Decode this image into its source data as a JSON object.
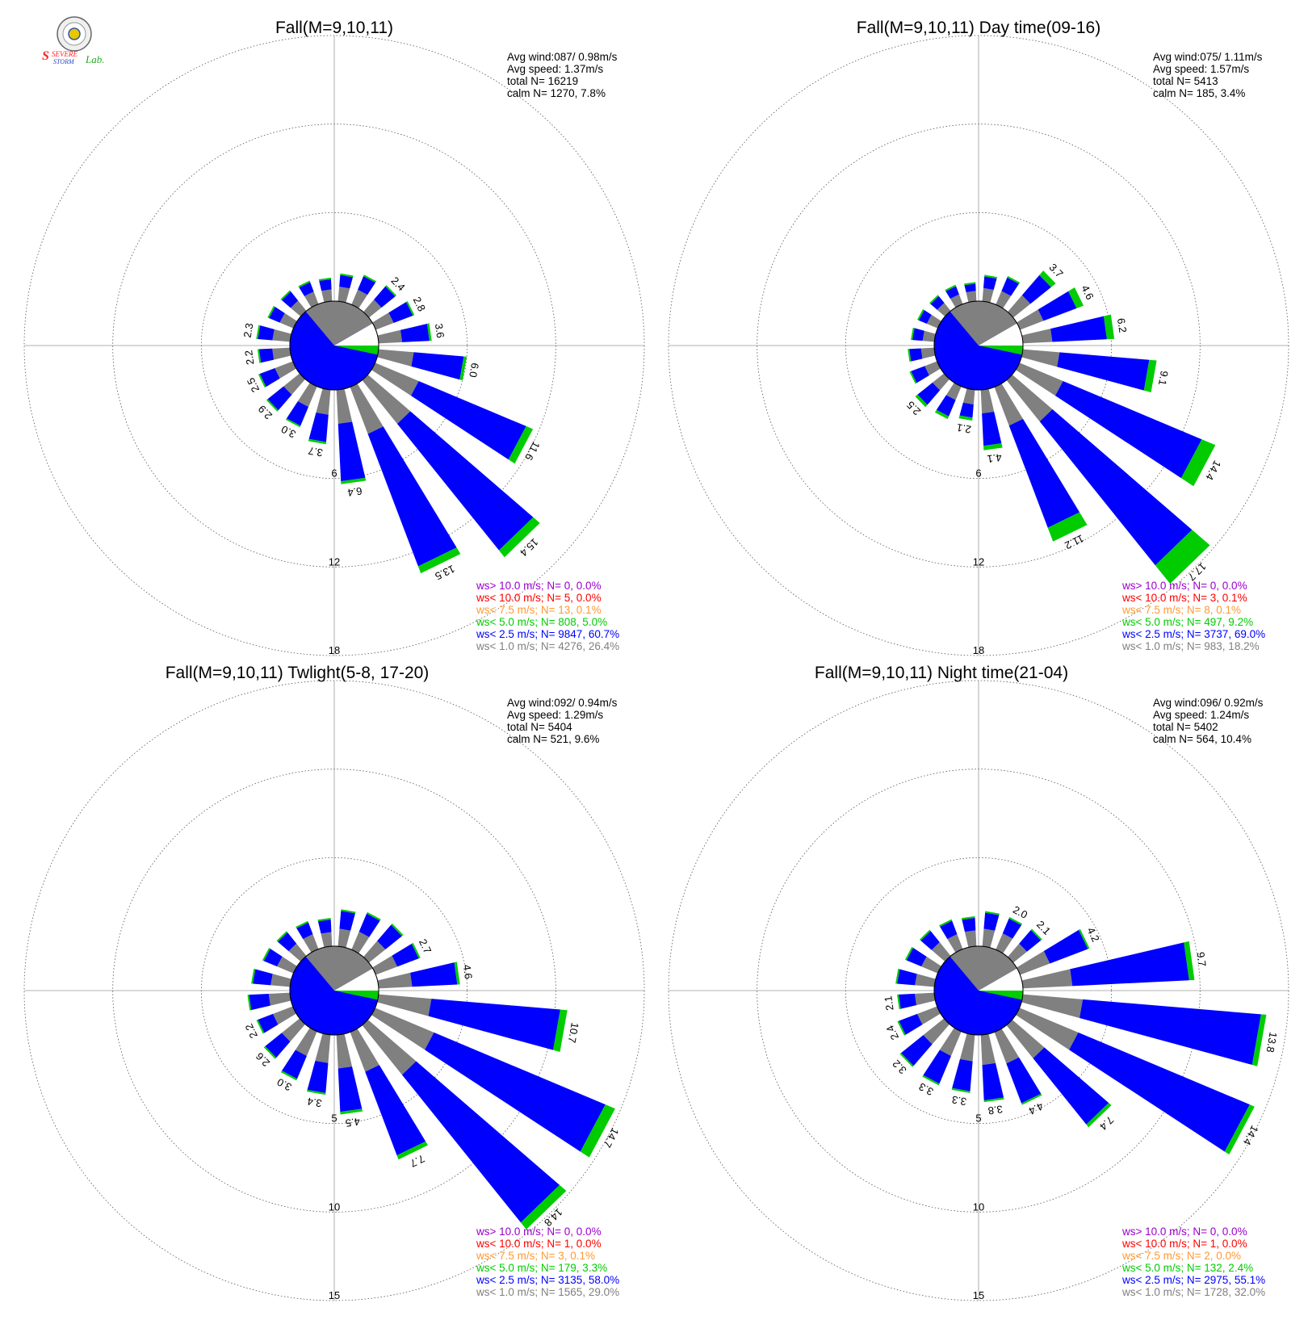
{
  "logo": {
    "line1": "SEVERE",
    "line2": "STORM",
    "line3": "Lab."
  },
  "colors": {
    "gt10": "#9900cc",
    "lt10": "#ff0000",
    "lt75": "#ff9933",
    "lt5": "#00cc00",
    "lt25": "#0000ff",
    "lt1": "#808080"
  },
  "charts": [
    {
      "title": "Fall(M=9,10,11)",
      "stats": [
        "Avg wind:087/ 0.98m/s",
        "Avg speed: 1.37m/s",
        "total N=      16219",
        "calm N=   1270,   7.8%"
      ],
      "ring_labels": [
        "6",
        "12",
        "18"
      ],
      "legend": [
        "ws> 10.0 m/s; N=    0,  0.0%",
        "ws< 10.0 m/s; N=    5,  0.0%",
        "ws<  7.5 m/s; N=   13,  0.1%",
        "ws<  5.0 m/s; N=  808,  5.0%",
        "ws<  2.5 m/s; N= 9847, 60.7%",
        "ws<  1.0 m/s; N= 4276, 26.4%"
      ]
    },
    {
      "title": "Fall(M=9,10,11) Day time(09-16)",
      "stats": [
        "Avg wind:075/ 1.11m/s",
        "Avg speed: 1.57m/s",
        "total N=       5413",
        "calm N=    185,   3.4%"
      ],
      "ring_labels": [
        "6",
        "12",
        "18"
      ],
      "legend": [
        "ws> 10.0 m/s; N=    0,  0.0%",
        "ws< 10.0 m/s; N=    3,  0.1%",
        "ws<  7.5 m/s; N=    8,  0.1%",
        "ws<  5.0 m/s; N=  497,  9.2%",
        "ws<  2.5 m/s; N= 3737, 69.0%",
        "ws<  1.0 m/s; N=  983, 18.2%"
      ]
    },
    {
      "title": "Fall(M=9,10,11) Twlight(5-8, 17-20)",
      "stats": [
        "Avg wind:092/ 0.94m/s",
        "Avg speed: 1.29m/s",
        "total N=       5404",
        "calm N=    521,   9.6%"
      ],
      "ring_labels": [
        "5",
        "10",
        "15"
      ],
      "legend": [
        "ws> 10.0 m/s; N=    0,  0.0%",
        "ws< 10.0 m/s; N=    1,  0.0%",
        "ws<  7.5 m/s; N=    3,  0.1%",
        "ws<  5.0 m/s; N=  179,  3.3%",
        "ws<  2.5 m/s; N= 3135, 58.0%",
        "ws<  1.0 m/s; N= 1565, 29.0%"
      ]
    },
    {
      "title": "Fall(M=9,10,11) Night time(21-04)",
      "stats": [
        "Avg wind:096/ 0.92m/s",
        "Avg speed: 1.24m/s",
        "total N=       5402",
        "calm N=    564,  10.4%"
      ],
      "ring_labels": [
        "5",
        "10",
        "15"
      ],
      "legend": [
        "ws> 10.0 m/s; N=    0,  0.0%",
        "ws< 10.0 m/s; N=    1,  0.0%",
        "ws<  7.5 m/s; N=    2,  0.0%",
        "ws<  5.0 m/s; N=  132,  2.4%",
        "ws<  2.5 m/s; N= 2975, 55.1%",
        "ws<  1.0 m/s; N= 1728, 32.0%"
      ]
    }
  ],
  "chart_data": [
    {
      "type": "wind-rose",
      "title": "Fall(M=9,10,11)",
      "radial_max": 18,
      "radial_ticks": [
        6,
        12,
        18
      ],
      "calm_percent": 7.8,
      "calm_sector_deg": [
        80,
        102
      ],
      "gray_sector_deg": [
        0,
        80
      ],
      "sectors": [
        {
          "dir": 2.5,
          "total": 1.9,
          "gray": 1.0,
          "green": 0.05
        },
        {
          "dir": 7.5,
          "total": 2.2,
          "gray": 1.1,
          "green": 0.05
        },
        {
          "dir": 12.5,
          "total": 2.4,
          "gray": 1.1,
          "green": 0.1,
          "label": "2.4"
        },
        {
          "dir": 17.5,
          "total": 2.8,
          "gray": 1.3,
          "green": 0.1,
          "label": "2.8"
        },
        {
          "dir": 22.5,
          "total": 3.6,
          "gray": 1.6,
          "green": 0.15,
          "label": "3.6"
        },
        {
          "dir": 27.5,
          "total": 6.0,
          "gray": 2.4,
          "green": 0.2,
          "label": "6.0"
        },
        {
          "dir": 32.5,
          "total": 11.6,
          "gray": 3.2,
          "green": 0.5,
          "label": "11.6"
        },
        {
          "dir": 37.5,
          "total": 15.4,
          "gray": 3.8,
          "green": 0.6,
          "label": "15.4"
        },
        {
          "dir": 42.5,
          "total": 13.5,
          "gray": 3.4,
          "green": 0.5,
          "label": "13.5"
        },
        {
          "dir": 47.5,
          "total": 6.4,
          "gray": 2.3,
          "green": 0.2,
          "label": "6.4"
        },
        {
          "dir": 52.5,
          "total": 3.7,
          "gray": 1.7,
          "green": 0.15,
          "label": "3.7"
        },
        {
          "dir": 57.5,
          "total": 3.0,
          "gray": 1.5,
          "green": 0.1,
          "label": "3.0"
        },
        {
          "dir": 62.5,
          "total": 2.9,
          "gray": 1.4,
          "green": 0.1,
          "label": "2.9"
        },
        {
          "dir": 67.5,
          "total": 2.5,
          "gray": 1.3,
          "green": 0.1,
          "label": "2.5"
        },
        {
          "dir": 72.5,
          "total": 2.2,
          "gray": 1.2,
          "green": 0.05,
          "label": "2.2"
        },
        {
          "dir": 77.5,
          "total": 2.3,
          "gray": 1.2,
          "green": 0.05,
          "label": "2.3"
        },
        {
          "dir": 82.5,
          "total": 1.9,
          "gray": 1.0,
          "green": 0.05
        },
        {
          "dir": 87.5,
          "total": 1.8,
          "gray": 0.9,
          "green": 0.05
        },
        {
          "dir": 92.5,
          "total": 1.7,
          "gray": 0.9,
          "green": 0.05
        },
        {
          "dir": 97.5,
          "total": 1.6,
          "gray": 0.8,
          "green": 0.05
        }
      ]
    },
    {
      "type": "wind-rose",
      "title": "Fall(M=9,10,11) Day time(09-16)",
      "radial_max": 18,
      "radial_ticks": [
        6,
        12,
        18
      ],
      "calm_percent": 3.4,
      "calm_sector_deg": [
        35,
        50
      ],
      "gray_sector_deg": [
        0,
        35
      ],
      "sectors": [
        {
          "dir": 2.5,
          "total": 1.8,
          "gray": 0.9,
          "green": 0.1
        },
        {
          "dir": 7.5,
          "total": 2.1,
          "gray": 1.0,
          "green": 0.1
        },
        {
          "dir": 12.5,
          "total": 3.7,
          "gray": 1.5,
          "green": 0.4,
          "label": "3.7"
        },
        {
          "dir": 17.5,
          "total": 4.6,
          "gray": 1.7,
          "green": 0.5,
          "label": "4.6"
        },
        {
          "dir": 22.5,
          "total": 6.2,
          "gray": 2.0,
          "green": 0.5,
          "label": "6.2"
        },
        {
          "dir": 27.5,
          "total": 9.1,
          "gray": 2.5,
          "green": 0.5,
          "label": "9.1"
        },
        {
          "dir": 32.5,
          "total": 14.4,
          "gray": 3.2,
          "green": 1.0,
          "label": "14.4"
        },
        {
          "dir": 37.5,
          "total": 17.7,
          "gray": 3.6,
          "green": 1.6,
          "label": "17.7"
        },
        {
          "dir": 42.5,
          "total": 11.2,
          "gray": 2.8,
          "green": 1.0,
          "label": "11.2"
        },
        {
          "dir": 47.5,
          "total": 4.1,
          "gray": 1.6,
          "green": 0.3,
          "label": "4.1"
        },
        {
          "dir": 52.5,
          "total": 2.1,
          "gray": 1.0,
          "green": 0.2,
          "label": "2.1"
        },
        {
          "dir": 57.5,
          "total": 2.4,
          "gray": 1.0,
          "green": 0.2
        },
        {
          "dir": 62.5,
          "total": 2.5,
          "gray": 1.0,
          "green": 0.2,
          "label": "2.5"
        },
        {
          "dir": 67.5,
          "total": 2.0,
          "gray": 0.9,
          "green": 0.1
        },
        {
          "dir": 72.5,
          "total": 1.8,
          "gray": 0.9,
          "green": 0.1
        },
        {
          "dir": 77.5,
          "total": 1.6,
          "gray": 0.8,
          "green": 0.1
        },
        {
          "dir": 82.5,
          "total": 1.5,
          "gray": 0.8,
          "green": 0.05
        },
        {
          "dir": 87.5,
          "total": 1.4,
          "gray": 0.7,
          "green": 0.05
        },
        {
          "dir": 92.5,
          "total": 1.4,
          "gray": 0.7,
          "green": 0.05
        },
        {
          "dir": 97.5,
          "total": 1.3,
          "gray": 0.7,
          "green": 0.05
        }
      ]
    },
    {
      "type": "wind-rose",
      "title": "Fall(M=9,10,11) Twlight(5-8, 17-20)",
      "radial_max": 15,
      "radial_ticks": [
        5,
        10,
        15
      ],
      "calm_percent": 9.6,
      "calm_sector_deg": [
        80,
        100
      ],
      "gray_sector_deg": [
        0,
        80
      ],
      "sectors": [
        {
          "dir": 2.5,
          "total": 2.1,
          "gray": 1.0,
          "green": 0.05
        },
        {
          "dir": 7.5,
          "total": 2.3,
          "gray": 1.1,
          "green": 0.05
        },
        {
          "dir": 12.5,
          "total": 2.5,
          "gray": 1.2,
          "green": 0.1
        },
        {
          "dir": 17.5,
          "total": 2.7,
          "gray": 1.3,
          "green": 0.1,
          "label": "2.7"
        },
        {
          "dir": 22.5,
          "total": 4.6,
          "gray": 1.9,
          "green": 0.15,
          "label": "4.6"
        },
        {
          "dir": 27.5,
          "total": 10.7,
          "gray": 3.0,
          "green": 0.4,
          "label": "10.7"
        },
        {
          "dir": 32.5,
          "total": 14.7,
          "gray": 3.6,
          "green": 0.6,
          "label": "14.7"
        },
        {
          "dir": 37.5,
          "total": 14.8,
          "gray": 3.6,
          "green": 0.5,
          "label": "14.8"
        },
        {
          "dir": 42.5,
          "total": 7.7,
          "gray": 2.4,
          "green": 0.25,
          "label": "7.7"
        },
        {
          "dir": 47.5,
          "total": 4.5,
          "gray": 1.9,
          "green": 0.15,
          "label": "4.5"
        },
        {
          "dir": 52.5,
          "total": 3.4,
          "gray": 1.6,
          "green": 0.1,
          "label": "3.4"
        },
        {
          "dir": 57.5,
          "total": 3.0,
          "gray": 1.5,
          "green": 0.1,
          "label": "3.0"
        },
        {
          "dir": 62.5,
          "total": 2.6,
          "gray": 1.3,
          "green": 0.1,
          "label": "2.6"
        },
        {
          "dir": 67.5,
          "total": 2.2,
          "gray": 1.2,
          "green": 0.05,
          "label": "2.2"
        },
        {
          "dir": 72.5,
          "total": 2.4,
          "gray": 1.2,
          "green": 0.05
        },
        {
          "dir": 77.5,
          "total": 2.2,
          "gray": 1.1,
          "green": 0.05
        },
        {
          "dir": 82.5,
          "total": 1.9,
          "gray": 1.0,
          "green": 0.05
        },
        {
          "dir": 87.5,
          "total": 1.8,
          "gray": 0.9,
          "green": 0.05
        },
        {
          "dir": 92.5,
          "total": 1.7,
          "gray": 0.9,
          "green": 0.05
        },
        {
          "dir": 97.5,
          "total": 1.6,
          "gray": 0.8,
          "green": 0.05
        }
      ]
    },
    {
      "type": "wind-rose",
      "title": "Fall(M=9,10,11) Night time(21-04)",
      "radial_max": 15,
      "radial_ticks": [
        5,
        10,
        15
      ],
      "calm_percent": 10.4,
      "calm_sector_deg": [
        90,
        108
      ],
      "gray_sector_deg": [
        0,
        90
      ],
      "sectors": [
        {
          "dir": 2.5,
          "total": 2.0,
          "gray": 1.0,
          "green": 0.05
        },
        {
          "dir": 7.5,
          "total": 2.0,
          "gray": 1.0,
          "green": 0.05,
          "label": "2.0"
        },
        {
          "dir": 12.5,
          "total": 2.1,
          "gray": 1.0,
          "green": 0.05,
          "label": "2.1"
        },
        {
          "dir": 17.5,
          "total": 4.2,
          "gray": 1.8,
          "green": 0.1,
          "label": "4.2"
        },
        {
          "dir": 22.5,
          "total": 9.7,
          "gray": 2.8,
          "green": 0.3,
          "label": "9.7"
        },
        {
          "dir": 27.5,
          "total": 13.8,
          "gray": 3.4,
          "green": 0.3,
          "label": "13.8"
        },
        {
          "dir": 32.5,
          "total": 14.4,
          "gray": 3.6,
          "green": 0.3,
          "label": "14.4"
        },
        {
          "dir": 37.5,
          "total": 7.4,
          "gray": 2.4,
          "green": 0.2,
          "label": "7.4"
        },
        {
          "dir": 42.5,
          "total": 4.4,
          "gray": 1.9,
          "green": 0.1,
          "label": "4.4"
        },
        {
          "dir": 47.5,
          "total": 3.8,
          "gray": 1.7,
          "green": 0.1,
          "label": "3.8"
        },
        {
          "dir": 52.5,
          "total": 3.3,
          "gray": 1.5,
          "green": 0.1,
          "label": "3.3"
        },
        {
          "dir": 57.5,
          "total": 3.3,
          "gray": 1.5,
          "green": 0.1,
          "label": "3.3"
        },
        {
          "dir": 62.5,
          "total": 3.2,
          "gray": 1.5,
          "green": 0.05,
          "label": "3.2"
        },
        {
          "dir": 67.5,
          "total": 2.4,
          "gray": 1.2,
          "green": 0.05,
          "label": "2.4"
        },
        {
          "dir": 72.5,
          "total": 2.1,
          "gray": 1.1,
          "green": 0.05,
          "label": "2.1"
        },
        {
          "dir": 77.5,
          "total": 2.2,
          "gray": 1.1,
          "green": 0.05
        },
        {
          "dir": 82.5,
          "total": 2.0,
          "gray": 1.0,
          "green": 0.05
        },
        {
          "dir": 87.5,
          "total": 1.9,
          "gray": 1.0,
          "green": 0.05
        },
        {
          "dir": 92.5,
          "total": 1.8,
          "gray": 0.9,
          "green": 0.05
        },
        {
          "dir": 97.5,
          "total": 1.7,
          "gray": 0.9,
          "green": 0.05
        }
      ]
    }
  ]
}
